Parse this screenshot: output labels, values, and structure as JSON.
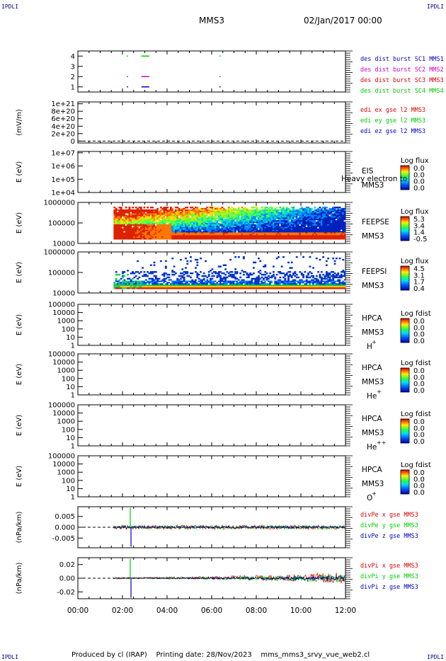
{
  "header": {
    "corner_tl": "IPDLI",
    "corner_tr": "IPDLI",
    "corner_bl": "IPDLI",
    "corner_br": "IPDLI",
    "spacecraft": "MMS3",
    "datetime": "02/Jan/2017 00:00"
  },
  "footer": {
    "produced_by": "Produced by cl (IRAP)",
    "printing_date": "Printing date: 28/Nov/2023",
    "filename": "mms_mms3_srvy_vue_web2.cl"
  },
  "colors": {
    "red": "#dd0000",
    "green": "#00cc00",
    "blue": "#0000cc",
    "magenta": "#cc00cc"
  },
  "chart_data": [
    {
      "type": "scatter",
      "panel": "burst",
      "yticks": [
        "1",
        "2",
        "3",
        "4"
      ],
      "legend": [
        {
          "label": "des dist burst SC1 MMS1",
          "color": "#0000cc"
        },
        {
          "label": "des dist burst SC2 MMS2",
          "color": "#cc00cc"
        },
        {
          "label": "des dist burst SC3 MMS3",
          "color": "#dd0000"
        },
        {
          "label": "des dist burst SC4 MMS4",
          "color": "#00cc00"
        }
      ],
      "ylim": [
        0.5,
        4.5
      ],
      "series": [
        {
          "sc": 1,
          "color": "#0000cc",
          "intervals": [
            [
              2.2,
              2.25
            ],
            [
              2.85,
              3.2
            ],
            [
              6.35,
              6.4
            ]
          ]
        },
        {
          "sc": 2,
          "color": "#cc00cc",
          "intervals": [
            [
              2.2,
              2.25
            ],
            [
              2.85,
              3.2
            ],
            [
              6.35,
              6.4
            ]
          ]
        },
        {
          "sc": 4,
          "color": "#00cc00",
          "intervals": [
            [
              2.2,
              2.25
            ],
            [
              2.85,
              3.2
            ],
            [
              6.35,
              6.4
            ]
          ]
        }
      ]
    },
    {
      "type": "line",
      "panel": "edi",
      "ylabel": "(mV/m)",
      "yticks": [
        "0",
        "2e+20",
        "4e+20",
        "6e+20",
        "8e+20",
        "1e+21"
      ],
      "yvalues": [
        0,
        2e+20,
        4e+20,
        6e+20,
        8e+20,
        1e+21
      ],
      "ylim": [
        -5e+19,
        1.05e+21
      ],
      "legend": [
        {
          "label": "edi ex gse l2 MMS3",
          "color": "#dd0000"
        },
        {
          "label": "edi ey gse l2 MMS3",
          "color": "#00cc00"
        },
        {
          "label": "edi ez gse l2 MMS3",
          "color": "#0000cc"
        }
      ]
    },
    {
      "type": "heatmap",
      "panel": "eis",
      "ylabel": "E (eV)",
      "yticks": [
        "1e+04",
        "1e+05",
        "1e+06",
        "1e+07"
      ],
      "label1": "EIS",
      "label2": "MMS3",
      "overlay_text": "Heavy electron to",
      "colorbar": {
        "title": "Log flux",
        "ticks": [
          "0.0",
          "0.0",
          "0.0",
          "0.0"
        ]
      }
    },
    {
      "type": "heatmap",
      "panel": "feeps-e",
      "ylabel": "E (eV)",
      "yticks": [
        "10000",
        "100000",
        "1000000"
      ],
      "label1": "FEEPSE",
      "label2": "MMS3",
      "colorbar": {
        "title": "Log flux",
        "ticks": [
          "5.3",
          "3.4",
          "1.4",
          "-0.5"
        ]
      }
    },
    {
      "type": "heatmap",
      "panel": "feeps-i",
      "ylabel": "E (eV)",
      "yticks": [
        "10000",
        "100000",
        "1000000"
      ],
      "label1": "FEEPSI",
      "label2": "MMS3",
      "colorbar": {
        "title": "Log flux",
        "ticks": [
          "4.5",
          "3.1",
          "1.7",
          "0.4"
        ]
      }
    },
    {
      "type": "heatmap",
      "panel": "hpca-h",
      "ylabel": "E (eV)",
      "yticks": [
        "1",
        "10",
        "100",
        "1000",
        "10000",
        "100000"
      ],
      "label1": "HPCA",
      "label2": "MMS3",
      "species": "H",
      "charge": "+",
      "colorbar": {
        "title": "Log fdist",
        "ticks": [
          "0.0",
          "0.0",
          "0.0",
          "0.0"
        ]
      }
    },
    {
      "type": "heatmap",
      "panel": "hpca-he",
      "ylabel": "E (eV)",
      "yticks": [
        "1",
        "10",
        "100",
        "1000",
        "10000",
        "100000"
      ],
      "label1": "HPCA",
      "label2": "MMS3",
      "species": "He",
      "charge": "+",
      "colorbar": {
        "title": "Log fdist",
        "ticks": [
          "0.0",
          "0.0",
          "0.0",
          "0.0"
        ]
      }
    },
    {
      "type": "heatmap",
      "panel": "hpca-he2",
      "ylabel": "E (eV)",
      "yticks": [
        "1",
        "10",
        "100",
        "1000",
        "10000",
        "100000"
      ],
      "label1": "HPCA",
      "label2": "MMS3",
      "species": "He",
      "charge": "++",
      "colorbar": {
        "title": "Log fdist",
        "ticks": [
          "0.0",
          "0.0",
          "0.0",
          "0.0"
        ]
      }
    },
    {
      "type": "heatmap",
      "panel": "hpca-o",
      "ylabel": "E (eV)",
      "yticks": [
        "1",
        "10",
        "100",
        "1000",
        "10000",
        "100000"
      ],
      "label1": "HPCA",
      "label2": "MMS3",
      "species": "O",
      "charge": "+",
      "colorbar": {
        "title": "Log fdist",
        "ticks": [
          "0.0",
          "0.0",
          "0.0",
          "0.0"
        ]
      }
    },
    {
      "type": "line",
      "panel": "divpe",
      "ylabel": "(nPa/km)",
      "yticks": [
        "-0.005",
        "0.000",
        "0.005"
      ],
      "yvalues": [
        -0.005,
        0,
        0.005
      ],
      "ylim": [
        -0.0095,
        0.0095
      ],
      "legend": [
        {
          "label": "divPe x gse MMS3",
          "color": "#dd0000"
        },
        {
          "label": "divPe y gse MMS3",
          "color": "#00cc00"
        },
        {
          "label": "divPe z gse MMS3",
          "color": "#0000cc"
        }
      ]
    },
    {
      "type": "line",
      "panel": "divpi",
      "ylabel": "(nPa/km)",
      "yticks": [
        "-0.02",
        "0.00",
        "0.02"
      ],
      "yvalues": [
        -0.02,
        0,
        0.02
      ],
      "ylim": [
        -0.03,
        0.03
      ],
      "legend": [
        {
          "label": "divPi x gse MMS3",
          "color": "#dd0000"
        },
        {
          "label": "divPi y gse MMS3",
          "color": "#00cc00"
        },
        {
          "label": "divPi z gse MMS3",
          "color": "#0000cc"
        }
      ]
    }
  ],
  "xaxis": {
    "ticks": [
      "00:00",
      "02:00",
      "04:00",
      "06:00",
      "08:00",
      "10:00",
      "12:00"
    ],
    "tick_hours": [
      0,
      2,
      4,
      6,
      8,
      10,
      12
    ],
    "xlim": [
      0,
      12
    ],
    "data_start_hour": 1.6
  }
}
